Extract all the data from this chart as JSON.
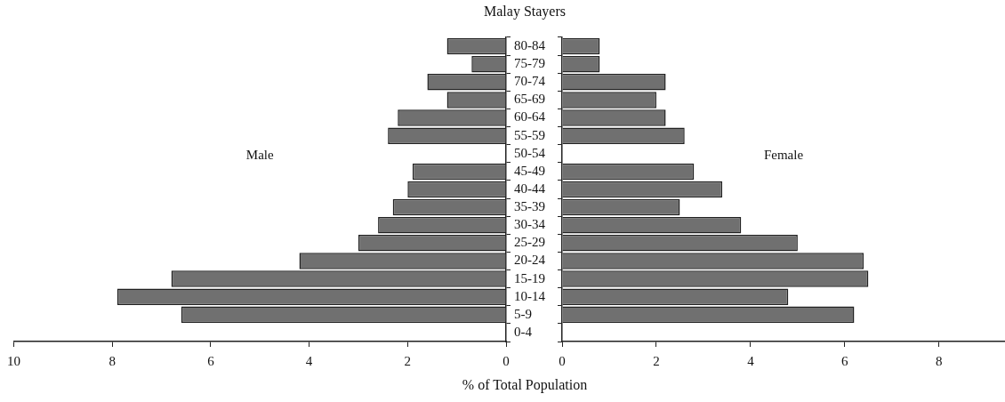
{
  "chart_data": [
    {
      "type": "bar",
      "orientation": "horizontal",
      "title": "Malay Stayers",
      "xlabel": "% of Total Population",
      "annotations": [
        "Male"
      ],
      "categories": [
        "80-84",
        "75-79",
        "70-74",
        "65-69",
        "60-64",
        "55-59",
        "50-54",
        "45-49",
        "40-44",
        "35-39",
        "30-34",
        "25-29",
        "20-24",
        "15-19",
        "10-14",
        "5-9",
        "0-4"
      ],
      "values": [
        1.2,
        0.7,
        1.6,
        1.2,
        2.2,
        2.4,
        null,
        1.9,
        2.0,
        2.3,
        2.6,
        3.0,
        4.2,
        6.8,
        7.9,
        6.6,
        null
      ],
      "color": "#707070",
      "xlim": [
        10,
        0
      ],
      "xticks": [
        10,
        8,
        6,
        4,
        2,
        0
      ],
      "grid": false
    },
    {
      "type": "bar",
      "orientation": "horizontal",
      "annotations": [
        "Female"
      ],
      "categories": [
        null,
        null,
        null,
        null,
        null,
        null,
        null,
        null,
        null,
        null,
        null,
        null,
        null,
        null,
        null,
        null,
        null
      ],
      "values": [
        0.8,
        0.8,
        2.2,
        2.0,
        2.2,
        2.6,
        null,
        2.8,
        3.4,
        2.5,
        3.8,
        5.0,
        6.4,
        6.5,
        4.8,
        6.2,
        null
      ],
      "color": "#707070",
      "xlim": [
        0,
        9.4
      ],
      "xticks": [
        0,
        2,
        4,
        6,
        8
      ],
      "grid": false
    }
  ]
}
